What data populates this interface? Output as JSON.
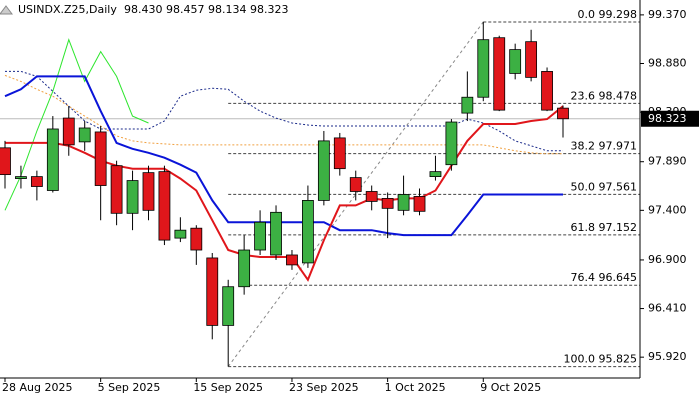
{
  "chart_data": {
    "type": "candlestick",
    "title": "USINDX.Z25,Daily",
    "quote": "98.430 98.457 98.134 98.323",
    "categories": [
      "28 Aug 2025",
      null,
      null,
      null,
      null,
      null,
      "5 Sep 2025",
      null,
      null,
      null,
      null,
      null,
      "15 Sep 2025",
      null,
      null,
      null,
      null,
      null,
      "23 Sep 2025",
      null,
      null,
      null,
      null,
      null,
      "1 Oct 2025",
      null,
      null,
      null,
      null,
      null,
      "9 Oct 2025",
      null,
      null,
      null,
      null,
      null
    ],
    "open": [
      98.03,
      97.72,
      97.74,
      97.6,
      98.33,
      98.09,
      98.19,
      97.85,
      97.37,
      97.78,
      97.79,
      97.12,
      97.22,
      96.92,
      96.24,
      96.63,
      97.0,
      96.95,
      96.95,
      96.87,
      97.5,
      98.13,
      97.73,
      97.59,
      97.52,
      97.4,
      97.54,
      97.74,
      97.86,
      98.38,
      98.54,
      99.14,
      98.78,
      99.1,
      98.8,
      98.43
    ],
    "high": [
      98.1,
      97.85,
      97.8,
      98.35,
      98.45,
      98.3,
      98.25,
      97.9,
      97.8,
      97.85,
      97.85,
      97.33,
      97.25,
      96.97,
      96.7,
      97.15,
      97.4,
      97.45,
      97.0,
      97.65,
      98.2,
      98.18,
      97.8,
      97.65,
      97.58,
      97.75,
      97.62,
      97.95,
      98.32,
      98.8,
      99.3,
      99.16,
      99.08,
      99.22,
      98.84,
      98.457
    ],
    "low": [
      97.62,
      97.62,
      97.5,
      97.58,
      97.95,
      98.0,
      97.3,
      97.25,
      97.2,
      97.3,
      97.05,
      97.08,
      96.85,
      96.1,
      95.825,
      96.55,
      96.95,
      96.9,
      96.8,
      96.82,
      97.45,
      97.75,
      97.5,
      97.4,
      97.12,
      97.35,
      97.35,
      97.7,
      97.8,
      98.3,
      98.5,
      98.4,
      98.72,
      98.7,
      98.4,
      98.134
    ],
    "close": [
      97.76,
      97.74,
      97.64,
      98.22,
      98.06,
      98.23,
      97.65,
      97.37,
      97.7,
      97.4,
      97.1,
      97.2,
      97.0,
      96.24,
      96.63,
      97.0,
      97.28,
      97.38,
      96.85,
      97.5,
      98.1,
      97.82,
      97.59,
      97.49,
      97.42,
      97.56,
      97.39,
      97.79,
      98.29,
      98.54,
      99.12,
      98.41,
      99.02,
      98.74,
      98.41,
      98.323
    ],
    "up_color": "#3cb043",
    "down_color": "#e0161b",
    "lines": [
      {
        "color": "#f0a040",
        "dashed": true,
        "width": 1,
        "values": [
          98.76,
          98.7,
          98.62,
          98.55,
          98.45,
          98.35,
          98.25,
          98.15,
          98.1,
          98.08,
          98.07,
          98.06,
          98.06,
          98.06,
          98.06,
          98.06,
          98.06,
          98.06,
          98.06,
          98.06,
          98.06,
          98.06,
          98.06,
          98.06,
          98.06,
          98.06,
          98.06,
          98.06,
          98.06,
          98.06,
          98.06,
          98.03,
          98.0,
          97.98,
          97.97,
          97.97
        ]
      },
      {
        "color": "#1a2a8a",
        "dashed": true,
        "width": 1,
        "values": [
          98.8,
          98.8,
          98.75,
          98.6,
          98.45,
          98.3,
          98.22,
          98.22,
          98.22,
          98.22,
          98.3,
          98.55,
          98.61,
          98.63,
          98.62,
          98.5,
          98.4,
          98.33,
          98.28,
          98.26,
          98.25,
          98.25,
          98.25,
          98.25,
          98.25,
          98.25,
          98.25,
          98.25,
          98.25,
          98.32,
          98.28,
          98.2,
          98.1,
          98.05,
          98.0,
          98.0
        ]
      },
      {
        "color": "#2ee62e",
        "dashed": false,
        "width": 1,
        "values": [
          97.4,
          97.75,
          98.2,
          98.6,
          99.12,
          98.7,
          99.0,
          98.75,
          98.35,
          98.28,
          null,
          null,
          null,
          null,
          null,
          null,
          null,
          null,
          null,
          null,
          null,
          null,
          null,
          null,
          null,
          null,
          null,
          null,
          null,
          null,
          null,
          null,
          null,
          null,
          null,
          null
        ]
      },
      {
        "color": "#0a14d8",
        "dashed": false,
        "width": 2,
        "values": [
          98.55,
          98.62,
          98.75,
          98.75,
          98.75,
          98.75,
          98.4,
          98.08,
          98.02,
          97.98,
          97.93,
          97.86,
          97.78,
          97.5,
          97.28,
          97.28,
          97.28,
          97.28,
          97.28,
          97.28,
          97.28,
          97.2,
          97.2,
          97.2,
          97.17,
          97.15,
          97.15,
          97.15,
          97.15,
          97.35,
          97.56,
          97.56,
          97.56,
          97.56,
          97.56,
          97.56
        ]
      },
      {
        "color": "#e0161b",
        "dashed": false,
        "width": 2,
        "values": [
          98.08,
          98.08,
          98.08,
          98.08,
          98.05,
          97.98,
          97.9,
          97.85,
          97.82,
          97.82,
          97.82,
          97.72,
          97.6,
          97.3,
          97.0,
          96.95,
          96.93,
          96.93,
          96.93,
          96.7,
          97.1,
          97.45,
          97.45,
          97.52,
          97.5,
          97.52,
          97.52,
          97.6,
          97.85,
          98.1,
          98.27,
          98.27,
          98.27,
          98.3,
          98.32,
          98.45
        ]
      }
    ],
    "fib_levels": [
      {
        "value": 99.298,
        "label": "0.0 99.298"
      },
      {
        "value": 98.478,
        "label": "23.6 98.478"
      },
      {
        "value": 97.971,
        "label": "38.2 97.971"
      },
      {
        "value": 97.561,
        "label": "50.0 97.561"
      },
      {
        "value": 97.152,
        "label": "61.8 97.152"
      },
      {
        "value": 96.645,
        "label": "76.4 96.645"
      },
      {
        "value": 95.825,
        "label": "100.0 95.825"
      }
    ],
    "current_price": 98.323,
    "ylim": [
      95.71,
      99.52
    ],
    "yticks": [
      {
        "value": 99.37,
        "label": "99.370"
      },
      {
        "value": 98.88,
        "label": "98.880"
      },
      {
        "value": 98.39,
        "label": "98.390"
      },
      {
        "value": 97.89,
        "label": "97.890"
      },
      {
        "value": 97.4,
        "label": "97.400"
      },
      {
        "value": 96.9,
        "label": "96.900"
      },
      {
        "value": 96.41,
        "label": "96.410"
      },
      {
        "value": 95.92,
        "label": "95.920"
      }
    ]
  }
}
